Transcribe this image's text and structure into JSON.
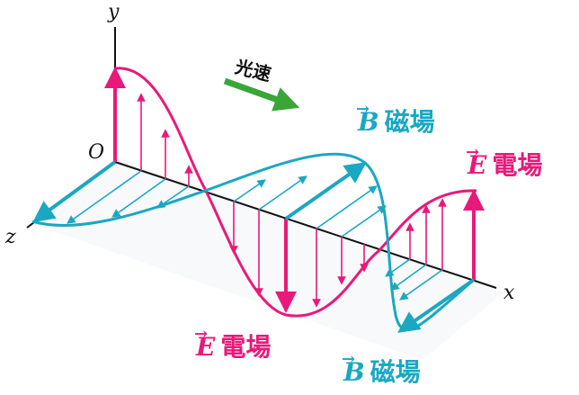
{
  "axes": {
    "x": "x",
    "y": "y",
    "z": "z",
    "origin": "O"
  },
  "speed_label": "光速",
  "labels": {
    "b_top": {
      "symbol": "B",
      "arrow": "→",
      "text": "磁場"
    },
    "e_right": {
      "symbol": "E",
      "arrow": "→",
      "text": "電場"
    },
    "e_bottom": {
      "symbol": "E",
      "arrow": "→",
      "text": "電場"
    },
    "b_bottom": {
      "symbol": "B",
      "arrow": "→",
      "text": "磁場"
    }
  },
  "colors": {
    "electric": "#e8197a",
    "magnetic": "#1aa7c3",
    "speed_arrow": "#3aa637",
    "axis": "#111111"
  }
}
